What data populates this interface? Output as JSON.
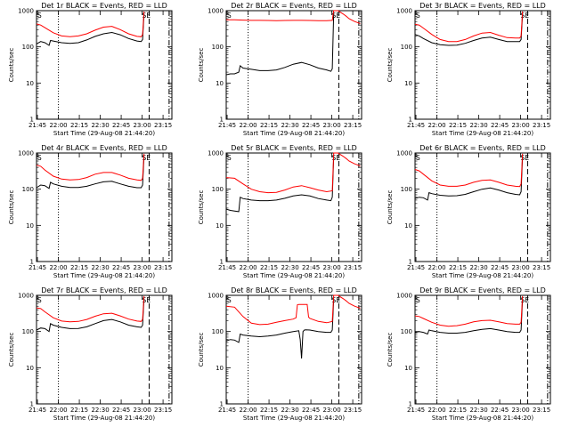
{
  "colors": {
    "background": "#ffffff",
    "events": "#000000",
    "lld": "#ff0000",
    "axes": "#000000"
  },
  "shared": {
    "xlabel": "Start Time (29-Aug-08 21:44:20)",
    "ylabel": "Counts/sec",
    "xticks": [
      "21:45",
      "22:00",
      "22:15",
      "22:30",
      "22:45",
      "23:00",
      "23:15"
    ],
    "yticks": [
      "1",
      "10",
      "100",
      "1000"
    ],
    "corner_marks": {
      "left": "S",
      "right": "SE"
    }
  },
  "chart_data": [
    {
      "type": "line",
      "title": "Det 1r BLACK = Events, RED = LLD",
      "x_unit": "minutes after 21:44:20",
      "xlim": [
        0,
        97
      ],
      "ylim": [
        1,
        1000
      ],
      "yscale": "log",
      "series": [
        {
          "name": "Events",
          "color": "#000000",
          "x": [
            0,
            3,
            6,
            9,
            10,
            12,
            18,
            24,
            30,
            36,
            42,
            48,
            54,
            60,
            66,
            72,
            75,
            76,
            77
          ],
          "y": [
            120,
            140,
            130,
            110,
            150,
            145,
            130,
            125,
            130,
            155,
            195,
            230,
            250,
            215,
            170,
            145,
            140,
            160,
            800
          ]
        },
        {
          "name": "LLD",
          "color": "#ff0000",
          "x": [
            0,
            3,
            6,
            12,
            18,
            24,
            30,
            36,
            42,
            48,
            54,
            60,
            66,
            72,
            75,
            76,
            77
          ],
          "y": [
            430,
            400,
            340,
            245,
            200,
            190,
            200,
            230,
            290,
            350,
            370,
            300,
            230,
            195,
            190,
            220,
            950
          ]
        }
      ],
      "vlines": [
        {
          "x": 15.7,
          "style": "dotted"
        },
        {
          "x": 80.7,
          "style": "dashed"
        },
        {
          "x": 95,
          "style": "dashdot"
        }
      ]
    },
    {
      "type": "line",
      "title": "Det 2r BLACK = Events, RED = LLD",
      "x_unit": "minutes after 21:44:20",
      "xlim": [
        0,
        97
      ],
      "ylim": [
        1,
        1000
      ],
      "yscale": "log",
      "series": [
        {
          "name": "Events",
          "color": "#000000",
          "x": [
            0,
            3,
            6,
            9,
            10,
            12,
            18,
            24,
            30,
            36,
            42,
            48,
            54,
            60,
            66,
            72,
            75,
            76,
            77
          ],
          "y": [
            17,
            18,
            18,
            20,
            30,
            26,
            24,
            22,
            22,
            23,
            27,
            33,
            37,
            32,
            26,
            23,
            21,
            25,
            900
          ]
        },
        {
          "name": "LLD",
          "color": "#ff0000",
          "x": [
            0,
            6,
            12,
            18,
            24,
            30,
            36,
            42,
            48,
            54,
            60,
            66,
            72,
            76,
            77,
            80,
            82,
            84,
            86,
            88,
            90,
            92,
            94,
            96
          ],
          "y": [
            560,
            560,
            550,
            540,
            540,
            535,
            530,
            535,
            540,
            540,
            535,
            530,
            530,
            540,
            1000,
            1000,
            900,
            800,
            700,
            600,
            550,
            500,
            470,
            440
          ]
        }
      ],
      "vlines": [
        {
          "x": 15.7,
          "style": "dotted"
        },
        {
          "x": 80.7,
          "style": "dashed"
        },
        {
          "x": 95,
          "style": "dashdot"
        }
      ]
    },
    {
      "type": "line",
      "title": "Det 3r BLACK = Events, RED = LLD",
      "x_unit": "minutes after 21:44:20",
      "xlim": [
        0,
        97
      ],
      "ylim": [
        1,
        1000
      ],
      "yscale": "log",
      "series": [
        {
          "name": "Events",
          "color": "#000000",
          "x": [
            0,
            3,
            6,
            12,
            18,
            24,
            30,
            36,
            42,
            48,
            54,
            60,
            66,
            72,
            75,
            76,
            77
          ],
          "y": [
            220,
            200,
            170,
            130,
            115,
            110,
            112,
            125,
            150,
            175,
            185,
            160,
            140,
            140,
            140,
            160,
            800
          ]
        },
        {
          "name": "LLD",
          "color": "#ff0000",
          "x": [
            0,
            3,
            6,
            12,
            18,
            24,
            30,
            36,
            42,
            48,
            54,
            60,
            66,
            72,
            75,
            76,
            77
          ],
          "y": [
            420,
            400,
            330,
            220,
            160,
            140,
            140,
            160,
            200,
            240,
            250,
            210,
            180,
            175,
            175,
            200,
            950
          ]
        }
      ],
      "vlines": [
        {
          "x": 15.7,
          "style": "dotted"
        },
        {
          "x": 80.7,
          "style": "dashed"
        },
        {
          "x": 95,
          "style": "dashdot"
        }
      ]
    },
    {
      "type": "line",
      "title": "Det 4r BLACK = Events, RED = LLD",
      "x_unit": "minutes after 21:44:20",
      "xlim": [
        0,
        97
      ],
      "ylim": [
        1,
        1000
      ],
      "yscale": "log",
      "series": [
        {
          "name": "Events",
          "color": "#000000",
          "x": [
            0,
            3,
            6,
            9,
            10,
            12,
            18,
            24,
            30,
            36,
            42,
            48,
            54,
            60,
            66,
            72,
            75,
            76,
            77
          ],
          "y": [
            110,
            130,
            125,
            105,
            155,
            140,
            120,
            112,
            112,
            120,
            140,
            160,
            165,
            140,
            120,
            110,
            110,
            130,
            800
          ]
        },
        {
          "name": "LLD",
          "color": "#ff0000",
          "x": [
            0,
            3,
            6,
            12,
            18,
            24,
            30,
            36,
            42,
            48,
            54,
            60,
            66,
            72,
            75,
            76,
            77
          ],
          "y": [
            460,
            430,
            340,
            230,
            190,
            180,
            185,
            210,
            260,
            290,
            290,
            245,
            200,
            180,
            175,
            200,
            950
          ]
        }
      ],
      "vlines": [
        {
          "x": 15.7,
          "style": "dotted"
        },
        {
          "x": 80.7,
          "style": "dashed"
        },
        {
          "x": 95,
          "style": "dashdot"
        }
      ]
    },
    {
      "type": "line",
      "title": "Det 5r BLACK = Events, RED = LLD",
      "x_unit": "minutes after 21:44:20",
      "xlim": [
        0,
        97
      ],
      "ylim": [
        1,
        1000
      ],
      "yscale": "log",
      "series": [
        {
          "name": "Events",
          "color": "#000000",
          "x": [
            0,
            3,
            6,
            9,
            10,
            12,
            18,
            24,
            30,
            36,
            42,
            48,
            54,
            60,
            66,
            72,
            75,
            76,
            77
          ],
          "y": [
            28,
            26,
            25,
            24,
            60,
            55,
            50,
            48,
            48,
            50,
            56,
            65,
            70,
            65,
            55,
            50,
            48,
            60,
            800
          ]
        },
        {
          "name": "LLD",
          "color": "#ff0000",
          "x": [
            0,
            6,
            12,
            18,
            24,
            30,
            36,
            42,
            48,
            54,
            60,
            66,
            72,
            76,
            77,
            80,
            82,
            84,
            86,
            88,
            90,
            92,
            94,
            96
          ],
          "y": [
            210,
            200,
            140,
            100,
            85,
            80,
            82,
            95,
            115,
            125,
            110,
            95,
            85,
            90,
            1000,
            1000,
            900,
            800,
            700,
            600,
            550,
            500,
            470,
            440
          ]
        }
      ],
      "vlines": [
        {
          "x": 15.7,
          "style": "dotted"
        },
        {
          "x": 80.7,
          "style": "dashed"
        },
        {
          "x": 95,
          "style": "dashdot"
        }
      ]
    },
    {
      "type": "line",
      "title": "Det 6r BLACK = Events, RED = LLD",
      "x_unit": "minutes after 21:44:20",
      "xlim": [
        0,
        97
      ],
      "ylim": [
        1,
        1000
      ],
      "yscale": "log",
      "series": [
        {
          "name": "Events",
          "color": "#000000",
          "x": [
            0,
            3,
            6,
            9,
            10,
            12,
            18,
            24,
            30,
            36,
            42,
            48,
            54,
            60,
            66,
            72,
            75,
            76,
            77
          ],
          "y": [
            55,
            60,
            58,
            50,
            80,
            75,
            68,
            65,
            66,
            72,
            85,
            100,
            108,
            95,
            80,
            72,
            70,
            85,
            800
          ]
        },
        {
          "name": "LLD",
          "color": "#ff0000",
          "x": [
            0,
            3,
            6,
            12,
            18,
            24,
            30,
            36,
            42,
            48,
            54,
            60,
            66,
            72,
            75,
            76,
            77
          ],
          "y": [
            350,
            320,
            260,
            170,
            130,
            120,
            120,
            130,
            155,
            175,
            180,
            155,
            130,
            120,
            118,
            140,
            950
          ]
        }
      ],
      "vlines": [
        {
          "x": 15.7,
          "style": "dotted"
        },
        {
          "x": 80.7,
          "style": "dashed"
        },
        {
          "x": 95,
          "style": "dashdot"
        }
      ]
    },
    {
      "type": "line",
      "title": "Det 7r BLACK = Events, RED = LLD",
      "x_unit": "minutes after 21:44:20",
      "xlim": [
        0,
        97
      ],
      "ylim": [
        1,
        1000
      ],
      "yscale": "log",
      "series": [
        {
          "name": "Events",
          "color": "#000000",
          "x": [
            0,
            3,
            6,
            9,
            10,
            12,
            18,
            24,
            30,
            36,
            42,
            48,
            54,
            60,
            66,
            72,
            75,
            76,
            77
          ],
          "y": [
            110,
            125,
            120,
            100,
            165,
            150,
            130,
            120,
            122,
            135,
            165,
            200,
            215,
            185,
            150,
            135,
            130,
            150,
            800
          ]
        },
        {
          "name": "LLD",
          "color": "#ff0000",
          "x": [
            0,
            3,
            6,
            12,
            18,
            24,
            30,
            36,
            42,
            48,
            54,
            60,
            66,
            72,
            75,
            76,
            77
          ],
          "y": [
            450,
            430,
            350,
            240,
            195,
            185,
            190,
            215,
            265,
            310,
            320,
            270,
            220,
            195,
            190,
            215,
            950
          ]
        }
      ],
      "vlines": [
        {
          "x": 15.7,
          "style": "dotted"
        },
        {
          "x": 80.7,
          "style": "dashed"
        },
        {
          "x": 95,
          "style": "dashdot"
        }
      ]
    },
    {
      "type": "line",
      "title": "Det 8r BLACK = Events, RED = LLD",
      "x_unit": "minutes after 21:44:20",
      "xlim": [
        0,
        97
      ],
      "ylim": [
        1,
        1000
      ],
      "yscale": "log",
      "series": [
        {
          "name": "Events",
          "color": "#000000",
          "x": [
            0,
            3,
            6,
            9,
            10,
            12,
            18,
            24,
            30,
            36,
            42,
            48,
            52,
            53,
            54,
            55,
            56,
            57,
            60,
            66,
            72,
            75,
            76,
            77
          ],
          "y": [
            55,
            60,
            58,
            50,
            85,
            80,
            75,
            72,
            75,
            80,
            90,
            100,
            105,
            60,
            18,
            100,
            110,
            112,
            110,
            100,
            95,
            95,
            110,
            800
          ]
        },
        {
          "name": "LLD",
          "color": "#ff0000",
          "x": [
            0,
            6,
            12,
            18,
            24,
            30,
            36,
            42,
            48,
            50,
            51,
            52,
            53,
            58,
            59,
            60,
            66,
            72,
            76,
            77,
            80,
            82,
            84,
            86,
            88,
            90,
            92,
            94,
            96
          ],
          "y": [
            500,
            470,
            260,
            170,
            155,
            160,
            180,
            200,
            220,
            240,
            550,
            560,
            560,
            560,
            250,
            230,
            190,
            175,
            190,
            1000,
            1000,
            900,
            800,
            700,
            600,
            550,
            500,
            470,
            440
          ]
        }
      ],
      "vlines": [
        {
          "x": 15.7,
          "style": "dotted"
        },
        {
          "x": 80.7,
          "style": "dashed"
        },
        {
          "x": 95,
          "style": "dashdot"
        }
      ]
    },
    {
      "type": "line",
      "title": "Det 9r BLACK = Events, RED = LLD",
      "x_unit": "minutes after 21:44:20",
      "xlim": [
        0,
        97
      ],
      "ylim": [
        1,
        1000
      ],
      "yscale": "log",
      "series": [
        {
          "name": "Events",
          "color": "#000000",
          "x": [
            0,
            3,
            6,
            9,
            10,
            12,
            18,
            24,
            30,
            36,
            42,
            48,
            54,
            60,
            66,
            72,
            75,
            76,
            77
          ],
          "y": [
            95,
            100,
            95,
            85,
            110,
            105,
            95,
            90,
            90,
            95,
            105,
            115,
            120,
            110,
            100,
            95,
            95,
            110,
            800
          ]
        },
        {
          "name": "LLD",
          "color": "#ff0000",
          "x": [
            0,
            3,
            6,
            12,
            18,
            24,
            30,
            36,
            42,
            48,
            54,
            60,
            66,
            72,
            75,
            76,
            77
          ],
          "y": [
            270,
            260,
            230,
            180,
            150,
            140,
            145,
            160,
            185,
            200,
            205,
            185,
            165,
            160,
            160,
            180,
            950
          ]
        }
      ],
      "vlines": [
        {
          "x": 15.7,
          "style": "dotted"
        },
        {
          "x": 80.7,
          "style": "dashed"
        },
        {
          "x": 95,
          "style": "dashdot"
        }
      ]
    }
  ]
}
